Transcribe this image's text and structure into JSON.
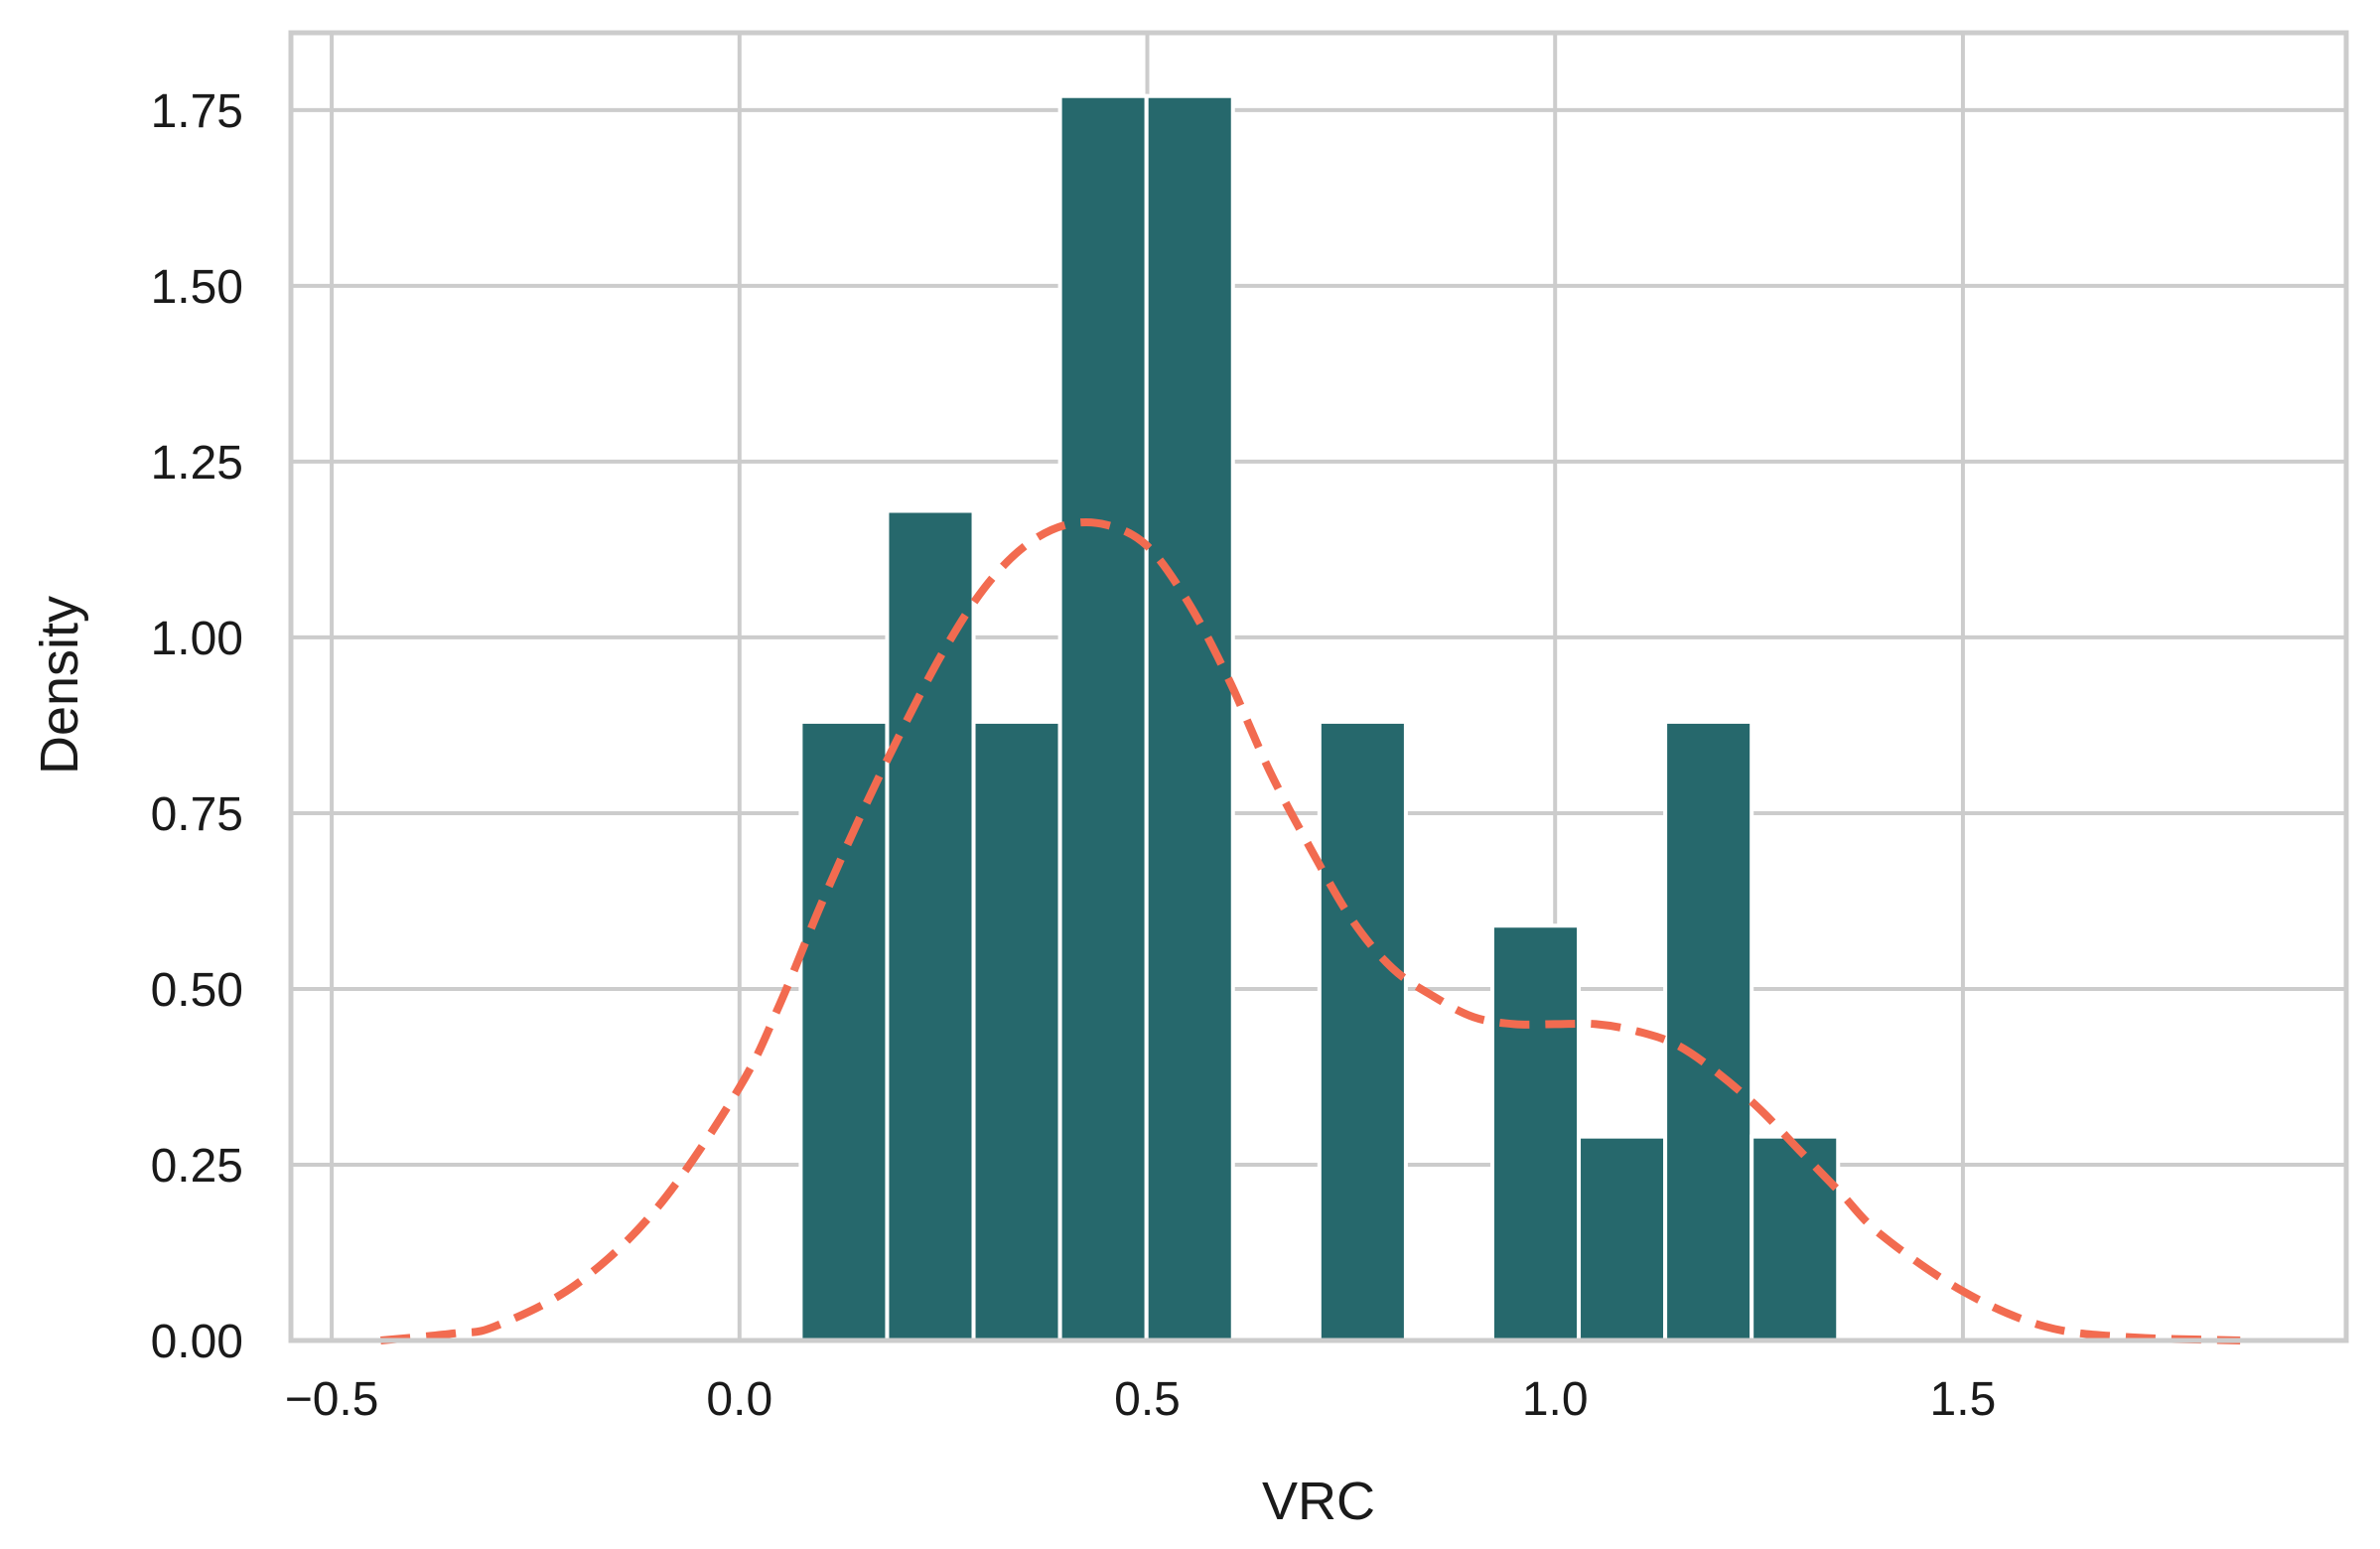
{
  "chart_data": {
    "type": "bar",
    "title": "",
    "xlabel": "VRC",
    "ylabel": "Density",
    "xlim": [
      -0.55,
      1.97
    ],
    "ylim": [
      0,
      1.86
    ],
    "x_ticks": [
      -0.5,
      0.0,
      0.5,
      1.0,
      1.5
    ],
    "x_tick_labels": [
      "−0.5",
      "0.0",
      "0.5",
      "1.0",
      "1.5"
    ],
    "y_ticks": [
      0.0,
      0.25,
      0.5,
      0.75,
      1.0,
      1.25,
      1.5,
      1.75
    ],
    "y_tick_labels": [
      "0.00",
      "0.25",
      "0.50",
      "0.75",
      "1.00",
      "1.25",
      "1.50",
      "1.75"
    ],
    "grid": true,
    "bar_color": "#26686c",
    "kde_color": "#f26b50",
    "histogram": {
      "bin_edges": [
        0.075,
        0.181,
        0.287,
        0.393,
        0.499,
        0.605,
        0.711,
        0.817,
        0.923,
        1.029,
        1.135,
        1.241,
        1.347
      ],
      "values": [
        0.88,
        1.18,
        0.88,
        1.77,
        1.77,
        0.0,
        0.88,
        0.0,
        0.59,
        0.29,
        0.88,
        0.29
      ]
    },
    "kde": {
      "x": [
        -0.44,
        -0.35,
        -0.3,
        -0.2,
        -0.1,
        0.0,
        0.05,
        0.1,
        0.15,
        0.2,
        0.25,
        0.3,
        0.35,
        0.4,
        0.45,
        0.5,
        0.55,
        0.6,
        0.65,
        0.7,
        0.75,
        0.8,
        0.85,
        0.9,
        0.95,
        1.0,
        1.05,
        1.1,
        1.15,
        1.2,
        1.25,
        1.3,
        1.35,
        1.4,
        1.5,
        1.6,
        1.7,
        1.84
      ],
      "y": [
        0.0,
        0.01,
        0.02,
        0.08,
        0.19,
        0.36,
        0.48,
        0.62,
        0.75,
        0.87,
        0.98,
        1.07,
        1.13,
        1.16,
        1.16,
        1.13,
        1.05,
        0.94,
        0.81,
        0.7,
        0.6,
        0.53,
        0.49,
        0.46,
        0.45,
        0.45,
        0.45,
        0.44,
        0.42,
        0.38,
        0.33,
        0.27,
        0.21,
        0.15,
        0.07,
        0.02,
        0.005,
        0.0
      ]
    }
  }
}
